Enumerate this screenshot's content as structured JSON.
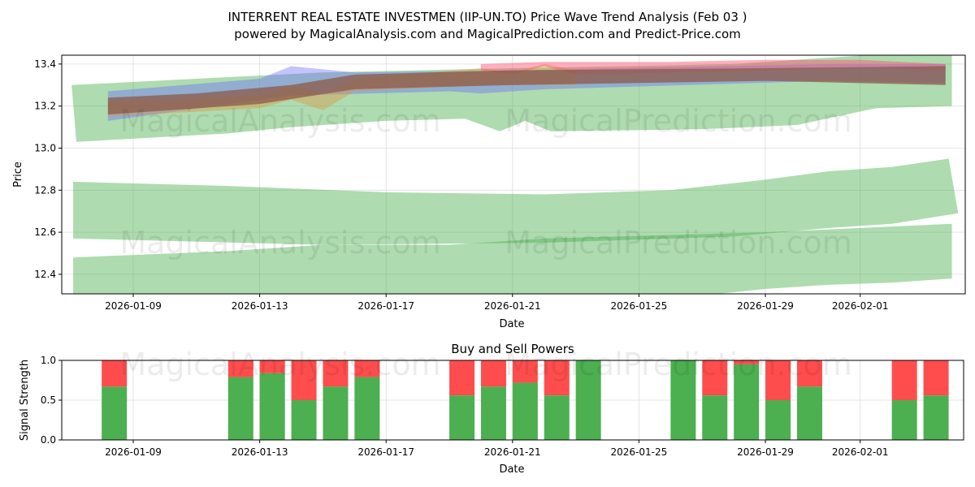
{
  "title_line1": "INTERRENT REAL ESTATE INVESTMEN (IIP-UN.TO) Price Wave Trend Analysis (Feb 03 )",
  "title_line2": "powered by MagicalAnalysis.com and MagicalPrediction.com and Predict-Price.com",
  "watermarks": [
    "MagicalAnalysis.com",
    "MagicalPrediction.com"
  ],
  "chart_data": [
    {
      "type": "area",
      "title": "",
      "xlabel": "Date",
      "ylabel": "Price",
      "x_unit": "days since 2026-01-01",
      "ylim": [
        12.307,
        13.442
      ],
      "xlim": [
        5.4,
        34.4
      ],
      "yticks": [
        12.4,
        12.6,
        12.8,
        13.0,
        13.2,
        13.4
      ],
      "ytick_labels": [
        "12.4",
        "12.6",
        "12.8",
        "13.0",
        "13.2",
        "13.4"
      ],
      "xticks": [
        8,
        12,
        16,
        20,
        24,
        28,
        31
      ],
      "xtick_labels": [
        "2026-01-09",
        "2026-01-13",
        "2026-01-17",
        "2026-01-21",
        "2026-01-25",
        "2026-01-29",
        "2026-02-01"
      ],
      "grid": true,
      "bands": [
        {
          "color": "#4caf50",
          "opacity": 0.45,
          "upper": [
            [
              6.05,
              13.3
            ],
            [
              10,
              13.33
            ],
            [
              14,
              13.36
            ],
            [
              20,
              13.38
            ],
            [
              27,
              13.4
            ],
            [
              31,
              13.44
            ],
            [
              33.9,
              13.44
            ]
          ],
          "lower": [
            [
              6.2,
              13.03
            ],
            [
              11,
              13.07
            ],
            [
              13,
              13.1
            ],
            [
              16,
              13.13
            ],
            [
              18.5,
              13.14
            ],
            [
              19.6,
              13.08
            ],
            [
              20.4,
              13.13
            ],
            [
              21.2,
              13.08
            ],
            [
              26,
              13.09
            ],
            [
              29,
              13.11
            ],
            [
              31.5,
              13.19
            ],
            [
              33.9,
              13.2
            ]
          ]
        },
        {
          "color": "#4caf50",
          "opacity": 0.45,
          "upper": [
            [
              6.1,
              12.84
            ],
            [
              11,
              12.82
            ],
            [
              16,
              12.79
            ],
            [
              21,
              12.78
            ],
            [
              25,
              12.8
            ],
            [
              28,
              12.85
            ],
            [
              30,
              12.89
            ],
            [
              32,
              12.91
            ],
            [
              33.8,
              12.95
            ],
            [
              34.1,
              12.69
            ]
          ],
          "lower": [
            [
              6.1,
              12.57
            ],
            [
              14,
              12.54
            ],
            [
              21,
              12.55
            ],
            [
              27,
              12.58
            ],
            [
              30,
              12.62
            ],
            [
              32,
              12.64
            ],
            [
              34.1,
              12.69
            ]
          ]
        },
        {
          "color": "#4caf50",
          "opacity": 0.45,
          "upper": [
            [
              6.1,
              12.48
            ],
            [
              11,
              12.51
            ],
            [
              14,
              12.54
            ],
            [
              18,
              12.54
            ],
            [
              21,
              12.57
            ],
            [
              28,
              12.6
            ],
            [
              31,
              12.62
            ],
            [
              33.9,
              12.64
            ]
          ],
          "lower": [
            [
              6.1,
              12.3
            ],
            [
              26,
              12.3
            ],
            [
              28,
              12.33
            ],
            [
              30,
              12.35
            ],
            [
              32,
              12.36
            ],
            [
              33.9,
              12.38
            ]
          ]
        },
        {
          "color": "#6a6aff",
          "opacity": 0.4,
          "upper": [
            [
              7.2,
              13.27
            ],
            [
              12,
              13.33
            ],
            [
              13,
              13.39
            ],
            [
              15,
              13.36
            ],
            [
              20,
              13.37
            ],
            [
              30,
              13.4
            ],
            [
              33.7,
              13.4
            ]
          ],
          "lower": [
            [
              7.2,
              13.13
            ],
            [
              13,
              13.25
            ],
            [
              18,
              13.27
            ],
            [
              19,
              13.26
            ],
            [
              21,
              13.28
            ],
            [
              30,
              13.32
            ],
            [
              33.7,
              13.31
            ]
          ]
        },
        {
          "color": "#e0903a",
          "opacity": 0.4,
          "upper": [
            [
              7.2,
              13.22
            ],
            [
              12,
              13.25
            ],
            [
              13,
              13.3
            ],
            [
              14,
              13.26
            ],
            [
              15,
              13.33
            ],
            [
              19,
              13.38
            ],
            [
              20,
              13.36
            ],
            [
              21,
              13.4
            ],
            [
              22,
              13.37
            ]
          ],
          "lower": [
            [
              7.2,
              13.15
            ],
            [
              12,
              13.19
            ],
            [
              13,
              13.23
            ],
            [
              14,
              13.18
            ],
            [
              15,
              13.27
            ],
            [
              19,
              13.3
            ],
            [
              22,
              13.3
            ]
          ]
        },
        {
          "color": "#ff4d6d",
          "opacity": 0.45,
          "upper": [
            [
              19,
              13.4
            ],
            [
              21,
              13.41
            ],
            [
              25,
              13.41
            ],
            [
              28,
              13.42
            ],
            [
              31,
              13.42
            ],
            [
              33.7,
              13.4
            ]
          ],
          "lower": [
            [
              19,
              13.37
            ],
            [
              20,
              13.35
            ],
            [
              21,
              13.39
            ],
            [
              22,
              13.35
            ],
            [
              28,
              13.37
            ],
            [
              31,
              13.38
            ],
            [
              33.7,
              13.37
            ]
          ]
        },
        {
          "color": "#8b5a4a",
          "opacity": 0.75,
          "upper": [
            [
              7.2,
              13.24
            ],
            [
              10,
              13.26
            ],
            [
              13,
              13.3
            ],
            [
              15,
              13.35
            ],
            [
              20,
              13.37
            ],
            [
              28,
              13.38
            ],
            [
              33.7,
              13.39
            ]
          ],
          "lower": [
            [
              7.2,
              13.16
            ],
            [
              12,
              13.21
            ],
            [
              15,
              13.28
            ],
            [
              20,
              13.3
            ],
            [
              28,
              13.32
            ],
            [
              33.7,
              13.3
            ]
          ]
        }
      ]
    },
    {
      "type": "bar",
      "title": "Buy and Sell Powers",
      "xlabel": "Date",
      "ylabel": "Signal Strength",
      "ylim": [
        0,
        1
      ],
      "yticks": [
        0,
        0.5,
        1.0
      ],
      "ytick_labels": [
        "0.0",
        "0.5",
        "1.0"
      ],
      "xtick_labels": [
        "2026-01-09",
        "2026-01-13",
        "2026-01-17",
        "2026-01-21",
        "2026-01-25",
        "2026-01-29",
        "2026-02-01"
      ],
      "grid": true,
      "categories": [
        "2026-01-08",
        "2026-01-12",
        "2026-01-13",
        "2026-01-14",
        "2026-01-15",
        "2026-01-16",
        "2026-01-19",
        "2026-01-20",
        "2026-01-21",
        "2026-01-22",
        "2026-01-23",
        "2026-01-26",
        "2026-01-27",
        "2026-01-28",
        "2026-01-29",
        "2026-01-30",
        "2026-02-02",
        "2026-02-03"
      ],
      "x_days": [
        7,
        11,
        12,
        13,
        14,
        15,
        18,
        19,
        20,
        21,
        22,
        25,
        26,
        27,
        28,
        29,
        32,
        33
      ],
      "series": [
        {
          "name": "Buy",
          "color": "#4caf50",
          "values": [
            0.67,
            0.79,
            0.84,
            0.5,
            0.67,
            0.79,
            0.56,
            0.67,
            0.72,
            0.56,
            1.0,
            1.0,
            0.56,
            0.95,
            0.5,
            0.67,
            0.5,
            0.56
          ]
        },
        {
          "name": "Sell",
          "color": "#ff4d4d",
          "values": [
            0.33,
            0.21,
            0.16,
            0.5,
            0.33,
            0.21,
            0.44,
            0.33,
            0.28,
            0.44,
            0.0,
            0.0,
            0.44,
            0.05,
            0.5,
            0.33,
            0.5,
            0.44
          ]
        }
      ]
    }
  ]
}
